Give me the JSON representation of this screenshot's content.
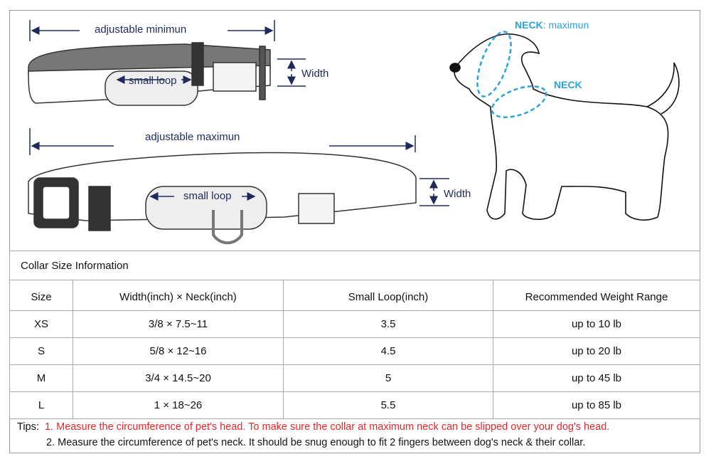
{
  "diagram": {
    "top_collar": {
      "length_label": "adjustable minimun",
      "loop_label": "small loop",
      "width_label": "Width"
    },
    "bottom_collar": {
      "length_label": "adjustable maximun",
      "loop_label": "small loop",
      "width_label": "Width"
    },
    "dog": {
      "neck_max_bold": "NECK",
      "neck_max_rest": ": maximun",
      "neck_label": "NECK"
    },
    "colors": {
      "label": "#1f2a5c",
      "measure": "#2aa3dc",
      "tip_red": "#e8262a"
    }
  },
  "table": {
    "title": "Collar Size Information",
    "headers": [
      "Size",
      "Width(inch)  ×  Neck(inch)",
      "Small Loop(inch)",
      "Recommended Weight Range"
    ],
    "rows": [
      [
        "XS",
        "3/8  × 7.5~11",
        "3.5",
        "up to 10 lb"
      ],
      [
        "S",
        "5/8  × 12~16",
        "4.5",
        "up to 20 lb"
      ],
      [
        "M",
        "3/4  × 14.5~20",
        "5",
        "up to 45 lb"
      ],
      [
        "L",
        "1  ×  18~26",
        "5.5",
        "up to 85 lb"
      ]
    ]
  },
  "tips": {
    "label": "Tips:",
    "tip1": "1. Measure the circumference of pet's head.  To make sure the collar at maximum neck can be slipped over your dog's head.",
    "tip2": "2. Measure the circumference of pet's neck. It should be snug enough to fit 2 fingers between dog's neck & their collar."
  }
}
